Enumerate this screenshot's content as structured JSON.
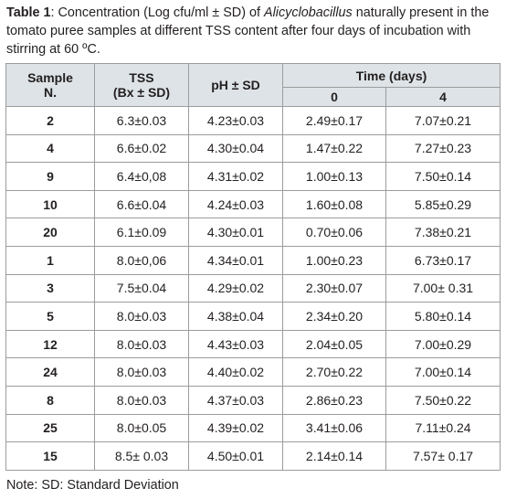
{
  "caption": {
    "label": "Table 1",
    "text_pre": ": Concentration (Log cfu/ml ± SD) of ",
    "italic": "Alicyclobacillus",
    "text_post": " naturally present in the tomato puree samples at different TSS content after four days of incubation with stirring at 60 ºC."
  },
  "headers": {
    "sample_line1": "Sample",
    "sample_line2": "N.",
    "tss_line1": "TSS",
    "tss_line2": "(Bx ± SD)",
    "ph": "pH ± SD",
    "time": "Time (days)",
    "day0": "0",
    "day4": "4"
  },
  "rows": [
    {
      "sample": "2",
      "tss": "6.3±0.03",
      "ph": "4.23±0.03",
      "d0": "2.49±0.17",
      "d4": "7.07±0.21"
    },
    {
      "sample": "4",
      "tss": "6.6±0.02",
      "ph": "4.30±0.04",
      "d0": "1.47±0.22",
      "d4": "7.27±0.23"
    },
    {
      "sample": "9",
      "tss": "6.4±0,08",
      "ph": "4.31±0.02",
      "d0": "1.00±0.13",
      "d4": "7.50±0.14"
    },
    {
      "sample": "10",
      "tss": "6.6±0.04",
      "ph": "4.24±0.03",
      "d0": "1.60±0.08",
      "d4": "5.85±0.29"
    },
    {
      "sample": "20",
      "tss": "6.1±0.09",
      "ph": "4.30±0.01",
      "d0": "0.70±0.06",
      "d4": "7.38±0.21"
    },
    {
      "sample": "1",
      "tss": "8.0±0,06",
      "ph": "4.34±0.01",
      "d0": "1.00±0.23",
      "d4": "6.73±0.17"
    },
    {
      "sample": "3",
      "tss": "7.5±0.04",
      "ph": "4.29±0.02",
      "d0": "2.30±0.07",
      "d4": "7.00± 0.31"
    },
    {
      "sample": "5",
      "tss": "8.0±0.03",
      "ph": "4.38±0.04",
      "d0": "2.34±0.20",
      "d4": "5.80±0.14"
    },
    {
      "sample": "12",
      "tss": "8.0±0.03",
      "ph": "4.43±0.03",
      "d0": "2.04±0.05",
      "d4": "7.00±0.29"
    },
    {
      "sample": "24",
      "tss": "8.0±0.03",
      "ph": "4.40±0.02",
      "d0": "2.70±0.22",
      "d4": "7.00±0.14"
    },
    {
      "sample": "8",
      "tss": "8.0±0.03",
      "ph": "4.37±0.03",
      "d0": "2.86±0.23",
      "d4": "7.50±0.22"
    },
    {
      "sample": "25",
      "tss": "8.0±0.05",
      "ph": "4.39±0.02",
      "d0": "3.41±0.06",
      "d4": "7.11±0.24"
    },
    {
      "sample": "15",
      "tss": "8.5± 0.03",
      "ph": "4.50±0.01",
      "d0": "2.14±0.14",
      "d4": "7.57± 0.17"
    }
  ],
  "note": "Note: SD: Standard Deviation",
  "colors": {
    "header_bg": "#dde3e6",
    "border": "#9c9c9c",
    "text": "#231f20"
  }
}
